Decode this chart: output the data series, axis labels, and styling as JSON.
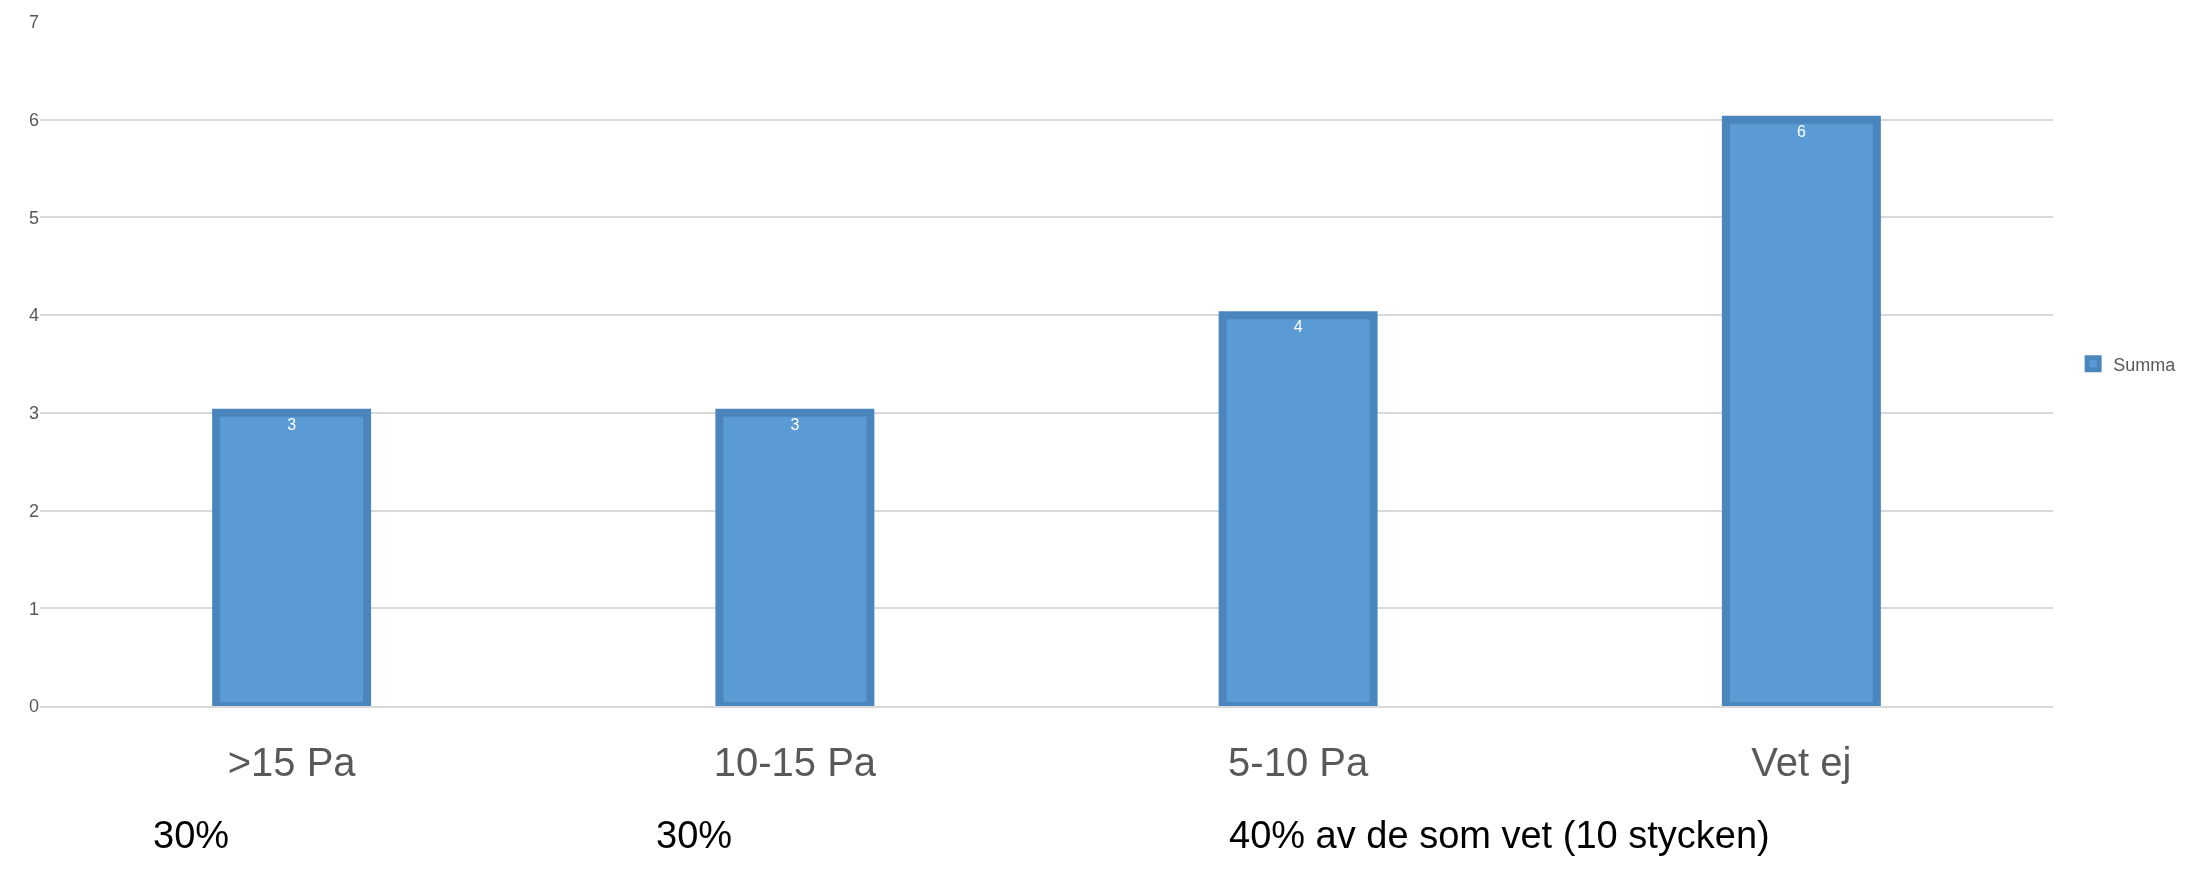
{
  "chart_data": {
    "type": "bar",
    "categories": [
      ">15 Pa",
      "10-15 Pa",
      "5-10 Pa",
      "Vet ej"
    ],
    "series": [
      {
        "name": "Summa",
        "color": "#5b9bd5",
        "values": [
          3,
          3,
          4,
          6
        ]
      }
    ],
    "ylim": [
      0,
      7
    ],
    "yticks": [
      0,
      1,
      2,
      3,
      4,
      5,
      6,
      7
    ],
    "grid": "y",
    "legend": "right",
    "data_labels": true,
    "annotations": [
      "30%",
      "30%",
      "40% av de som vet (10 stycken)"
    ]
  }
}
